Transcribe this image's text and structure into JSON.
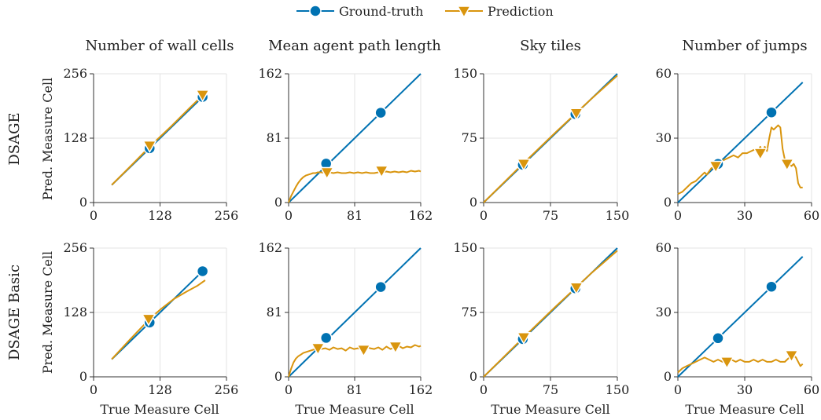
{
  "legend": {
    "items": [
      {
        "label": "Ground-truth",
        "color": "#0072B2",
        "marker": "circle"
      },
      {
        "label": "Prediction",
        "color": "#E69F00",
        "marker": "triangle-down"
      }
    ]
  },
  "row_labels": [
    "DSAGE",
    "DSAGE Basic"
  ],
  "y_axis_label": "Pred. Measure Cell",
  "x_axis_label": "True Measure Cell",
  "colors": {
    "ground_truth": "#0072B2",
    "prediction": "#D9950E",
    "grid": "#e3e3e3",
    "axis": "#333333"
  },
  "chart_data": [
    {
      "type": "line",
      "title": "Number of wall cells",
      "row": "DSAGE",
      "xlim": [
        0,
        256
      ],
      "ylim": [
        0,
        256
      ],
      "ticks": [
        0,
        128,
        256
      ],
      "series": [
        {
          "name": "Ground-truth",
          "x": [
            35,
            210
          ],
          "y": [
            35,
            210
          ],
          "markers": [
            [
              108,
              108
            ],
            [
              210,
              210
            ]
          ]
        },
        {
          "name": "Prediction",
          "x": [
            35,
            70,
            108,
            150,
            185,
            210
          ],
          "y": [
            35,
            71,
            111,
            152,
            188,
            213
          ],
          "markers": [
            [
              108,
              113
            ],
            [
              210,
              214
            ]
          ]
        }
      ]
    },
    {
      "type": "line",
      "title": "Mean agent path length",
      "row": "DSAGE",
      "xlim": [
        0,
        162
      ],
      "ylim": [
        0,
        162
      ],
      "ticks": [
        0,
        81,
        162
      ],
      "series": [
        {
          "name": "Ground-truth",
          "x": [
            0,
            162
          ],
          "y": [
            0,
            162
          ],
          "markers": [
            [
              46,
              49
            ],
            [
              113,
              113
            ]
          ]
        },
        {
          "name": "Prediction",
          "x": [
            0,
            3,
            6,
            9,
            12,
            15,
            18,
            21,
            24,
            27,
            30,
            33,
            36,
            40,
            45,
            50,
            55,
            60,
            65,
            70,
            75,
            80,
            85,
            90,
            95,
            100,
            105,
            110,
            115,
            120,
            125,
            130,
            135,
            140,
            145,
            150,
            155,
            160,
            162
          ],
          "y": [
            0,
            8,
            14,
            20,
            25,
            29,
            32,
            34,
            35,
            36,
            37,
            37,
            38,
            38,
            37,
            38,
            37,
            38,
            37,
            37,
            38,
            37,
            38,
            37,
            38,
            37,
            37,
            38,
            38,
            39,
            38,
            39,
            38,
            39,
            38,
            40,
            39,
            40,
            39
          ],
          "markers": [
            [
              47,
              38
            ],
            [
              114,
              40
            ]
          ]
        }
      ]
    },
    {
      "type": "line",
      "title": "Sky tiles",
      "row": "DSAGE",
      "xlim": [
        0,
        150
      ],
      "ylim": [
        0,
        150
      ],
      "ticks": [
        0,
        75,
        150
      ],
      "series": [
        {
          "name": "Ground-truth",
          "x": [
            0,
            150
          ],
          "y": [
            0,
            150
          ],
          "markers": [
            [
              44,
              44
            ],
            [
              103,
              103
            ]
          ]
        },
        {
          "name": "Prediction",
          "x": [
            0,
            40,
            80,
            120,
            150
          ],
          "y": [
            0,
            41,
            81,
            120,
            148
          ],
          "markers": [
            [
              45,
              45
            ],
            [
              104,
              104
            ]
          ]
        }
      ]
    },
    {
      "type": "line",
      "title": "Number of jumps",
      "row": "DSAGE",
      "xlim": [
        0,
        60
      ],
      "ylim": [
        0,
        60
      ],
      "ticks": [
        0,
        30,
        60
      ],
      "series": [
        {
          "name": "Ground-truth",
          "x": [
            0,
            56
          ],
          "y": [
            0,
            56
          ],
          "markers": [
            [
              18,
              18
            ],
            [
              42,
              42
            ]
          ]
        },
        {
          "name": "Prediction",
          "x": [
            0,
            2,
            4,
            6,
            8,
            10,
            12,
            13,
            15,
            17,
            19,
            21,
            23,
            25,
            27,
            29,
            31,
            33,
            35,
            36,
            37,
            38,
            39,
            40,
            41,
            42,
            43,
            44,
            45,
            46,
            47,
            48,
            49,
            50,
            51,
            52,
            53,
            54,
            55,
            56
          ],
          "y": [
            4,
            5,
            7,
            9,
            10,
            12,
            14,
            13,
            16,
            17,
            19,
            20,
            21,
            22,
            21,
            23,
            23,
            24,
            25,
            24,
            26,
            23,
            26,
            24,
            30,
            35,
            34,
            35,
            36,
            35,
            25,
            20,
            17,
            18,
            17,
            18,
            16,
            9,
            7,
            7
          ],
          "markers": [
            [
              17,
              17
            ],
            [
              37,
              23
            ],
            [
              49,
              18
            ]
          ]
        }
      ]
    },
    {
      "type": "line",
      "title": "",
      "row": "DSAGE Basic",
      "xlim": [
        0,
        256
      ],
      "ylim": [
        0,
        256
      ],
      "ticks": [
        0,
        128,
        256
      ],
      "series": [
        {
          "name": "Ground-truth",
          "x": [
            35,
            210
          ],
          "y": [
            35,
            210
          ],
          "markers": [
            [
              108,
              108
            ],
            [
              210,
              210
            ]
          ]
        },
        {
          "name": "Prediction",
          "x": [
            35,
            70,
            108,
            130,
            155,
            180,
            200,
            215
          ],
          "y": [
            35,
            74,
            115,
            135,
            155,
            170,
            181,
            192
          ],
          "markers": [
            [
              106,
              115
            ]
          ]
        }
      ]
    },
    {
      "type": "line",
      "title": "",
      "row": "DSAGE Basic",
      "xlim": [
        0,
        162
      ],
      "ylim": [
        0,
        162
      ],
      "ticks": [
        0,
        81,
        162
      ],
      "series": [
        {
          "name": "Ground-truth",
          "x": [
            0,
            162
          ],
          "y": [
            0,
            162
          ],
          "markers": [
            [
              46,
              49
            ],
            [
              113,
              113
            ]
          ]
        },
        {
          "name": "Prediction",
          "x": [
            0,
            3,
            6,
            9,
            12,
            15,
            18,
            21,
            24,
            27,
            30,
            33,
            36,
            40,
            45,
            50,
            55,
            60,
            65,
            70,
            75,
            80,
            85,
            90,
            95,
            100,
            105,
            110,
            115,
            120,
            125,
            130,
            135,
            140,
            145,
            150,
            155,
            160,
            162
          ],
          "y": [
            0,
            10,
            18,
            23,
            26,
            28,
            30,
            31,
            32,
            33,
            34,
            35,
            34,
            35,
            36,
            34,
            37,
            35,
            36,
            33,
            37,
            35,
            36,
            34,
            38,
            36,
            35,
            37,
            34,
            38,
            35,
            37,
            39,
            36,
            38,
            37,
            40,
            38,
            39
          ],
          "markers": [
            [
              36,
              36
            ],
            [
              92,
              34
            ],
            [
              131,
              38
            ]
          ]
        }
      ]
    },
    {
      "type": "line",
      "title": "",
      "row": "DSAGE Basic",
      "xlim": [
        0,
        150
      ],
      "ylim": [
        0,
        150
      ],
      "ticks": [
        0,
        75,
        150
      ],
      "series": [
        {
          "name": "Ground-truth",
          "x": [
            0,
            150
          ],
          "y": [
            0,
            150
          ],
          "markers": [
            [
              44,
              44
            ],
            [
              103,
              103
            ]
          ]
        },
        {
          "name": "Prediction",
          "x": [
            0,
            40,
            80,
            120,
            150
          ],
          "y": [
            0,
            41,
            81,
            120,
            147
          ],
          "markers": [
            [
              45,
              46
            ],
            [
              104,
              104
            ]
          ]
        }
      ]
    },
    {
      "type": "line",
      "title": "",
      "row": "DSAGE Basic",
      "xlim": [
        0,
        60
      ],
      "ylim": [
        0,
        60
      ],
      "ticks": [
        0,
        30,
        60
      ],
      "series": [
        {
          "name": "Ground-truth",
          "x": [
            0,
            56
          ],
          "y": [
            0,
            56
          ],
          "markers": [
            [
              18,
              18
            ],
            [
              42,
              42
            ]
          ]
        },
        {
          "name": "Prediction",
          "x": [
            0,
            2,
            4,
            6,
            8,
            10,
            12,
            14,
            16,
            18,
            20,
            22,
            24,
            26,
            28,
            30,
            32,
            34,
            36,
            38,
            40,
            42,
            44,
            46,
            48,
            50,
            51,
            52,
            53,
            54,
            55,
            56
          ],
          "y": [
            2,
            4,
            5,
            6,
            7,
            8,
            9,
            8,
            7,
            8,
            7,
            7,
            8,
            7,
            8,
            7,
            7,
            8,
            7,
            8,
            7,
            7,
            8,
            7,
            7,
            9,
            10,
            10,
            9,
            7,
            5,
            6
          ],
          "markers": [
            [
              22,
              7
            ],
            [
              51,
              10
            ]
          ]
        }
      ]
    }
  ]
}
